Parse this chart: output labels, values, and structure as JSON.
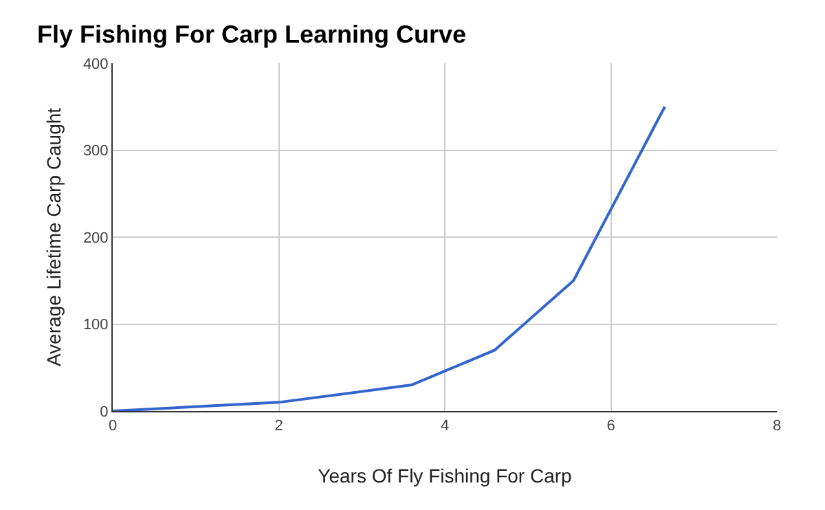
{
  "chart_data": {
    "type": "line",
    "title": "Fly Fishing For Carp Learning Curve",
    "xlabel": "Years Of Fly Fishing For Carp",
    "ylabel": "Average Lifetime Carp Caught",
    "x": [
      0,
      2,
      3.6,
      4.6,
      5.55,
      6.65
    ],
    "series": [
      {
        "color": "#3366cc",
        "values": [
          0,
          10,
          30,
          70,
          150,
          350
        ]
      }
    ],
    "xlim": [
      0,
      8
    ],
    "xticks": [
      0,
      2,
      4,
      6,
      8
    ],
    "ylim": [
      0,
      400
    ],
    "yticks": [
      0,
      100,
      200,
      300,
      400
    ],
    "grid": true,
    "marker": "none",
    "line_style": "solid"
  }
}
